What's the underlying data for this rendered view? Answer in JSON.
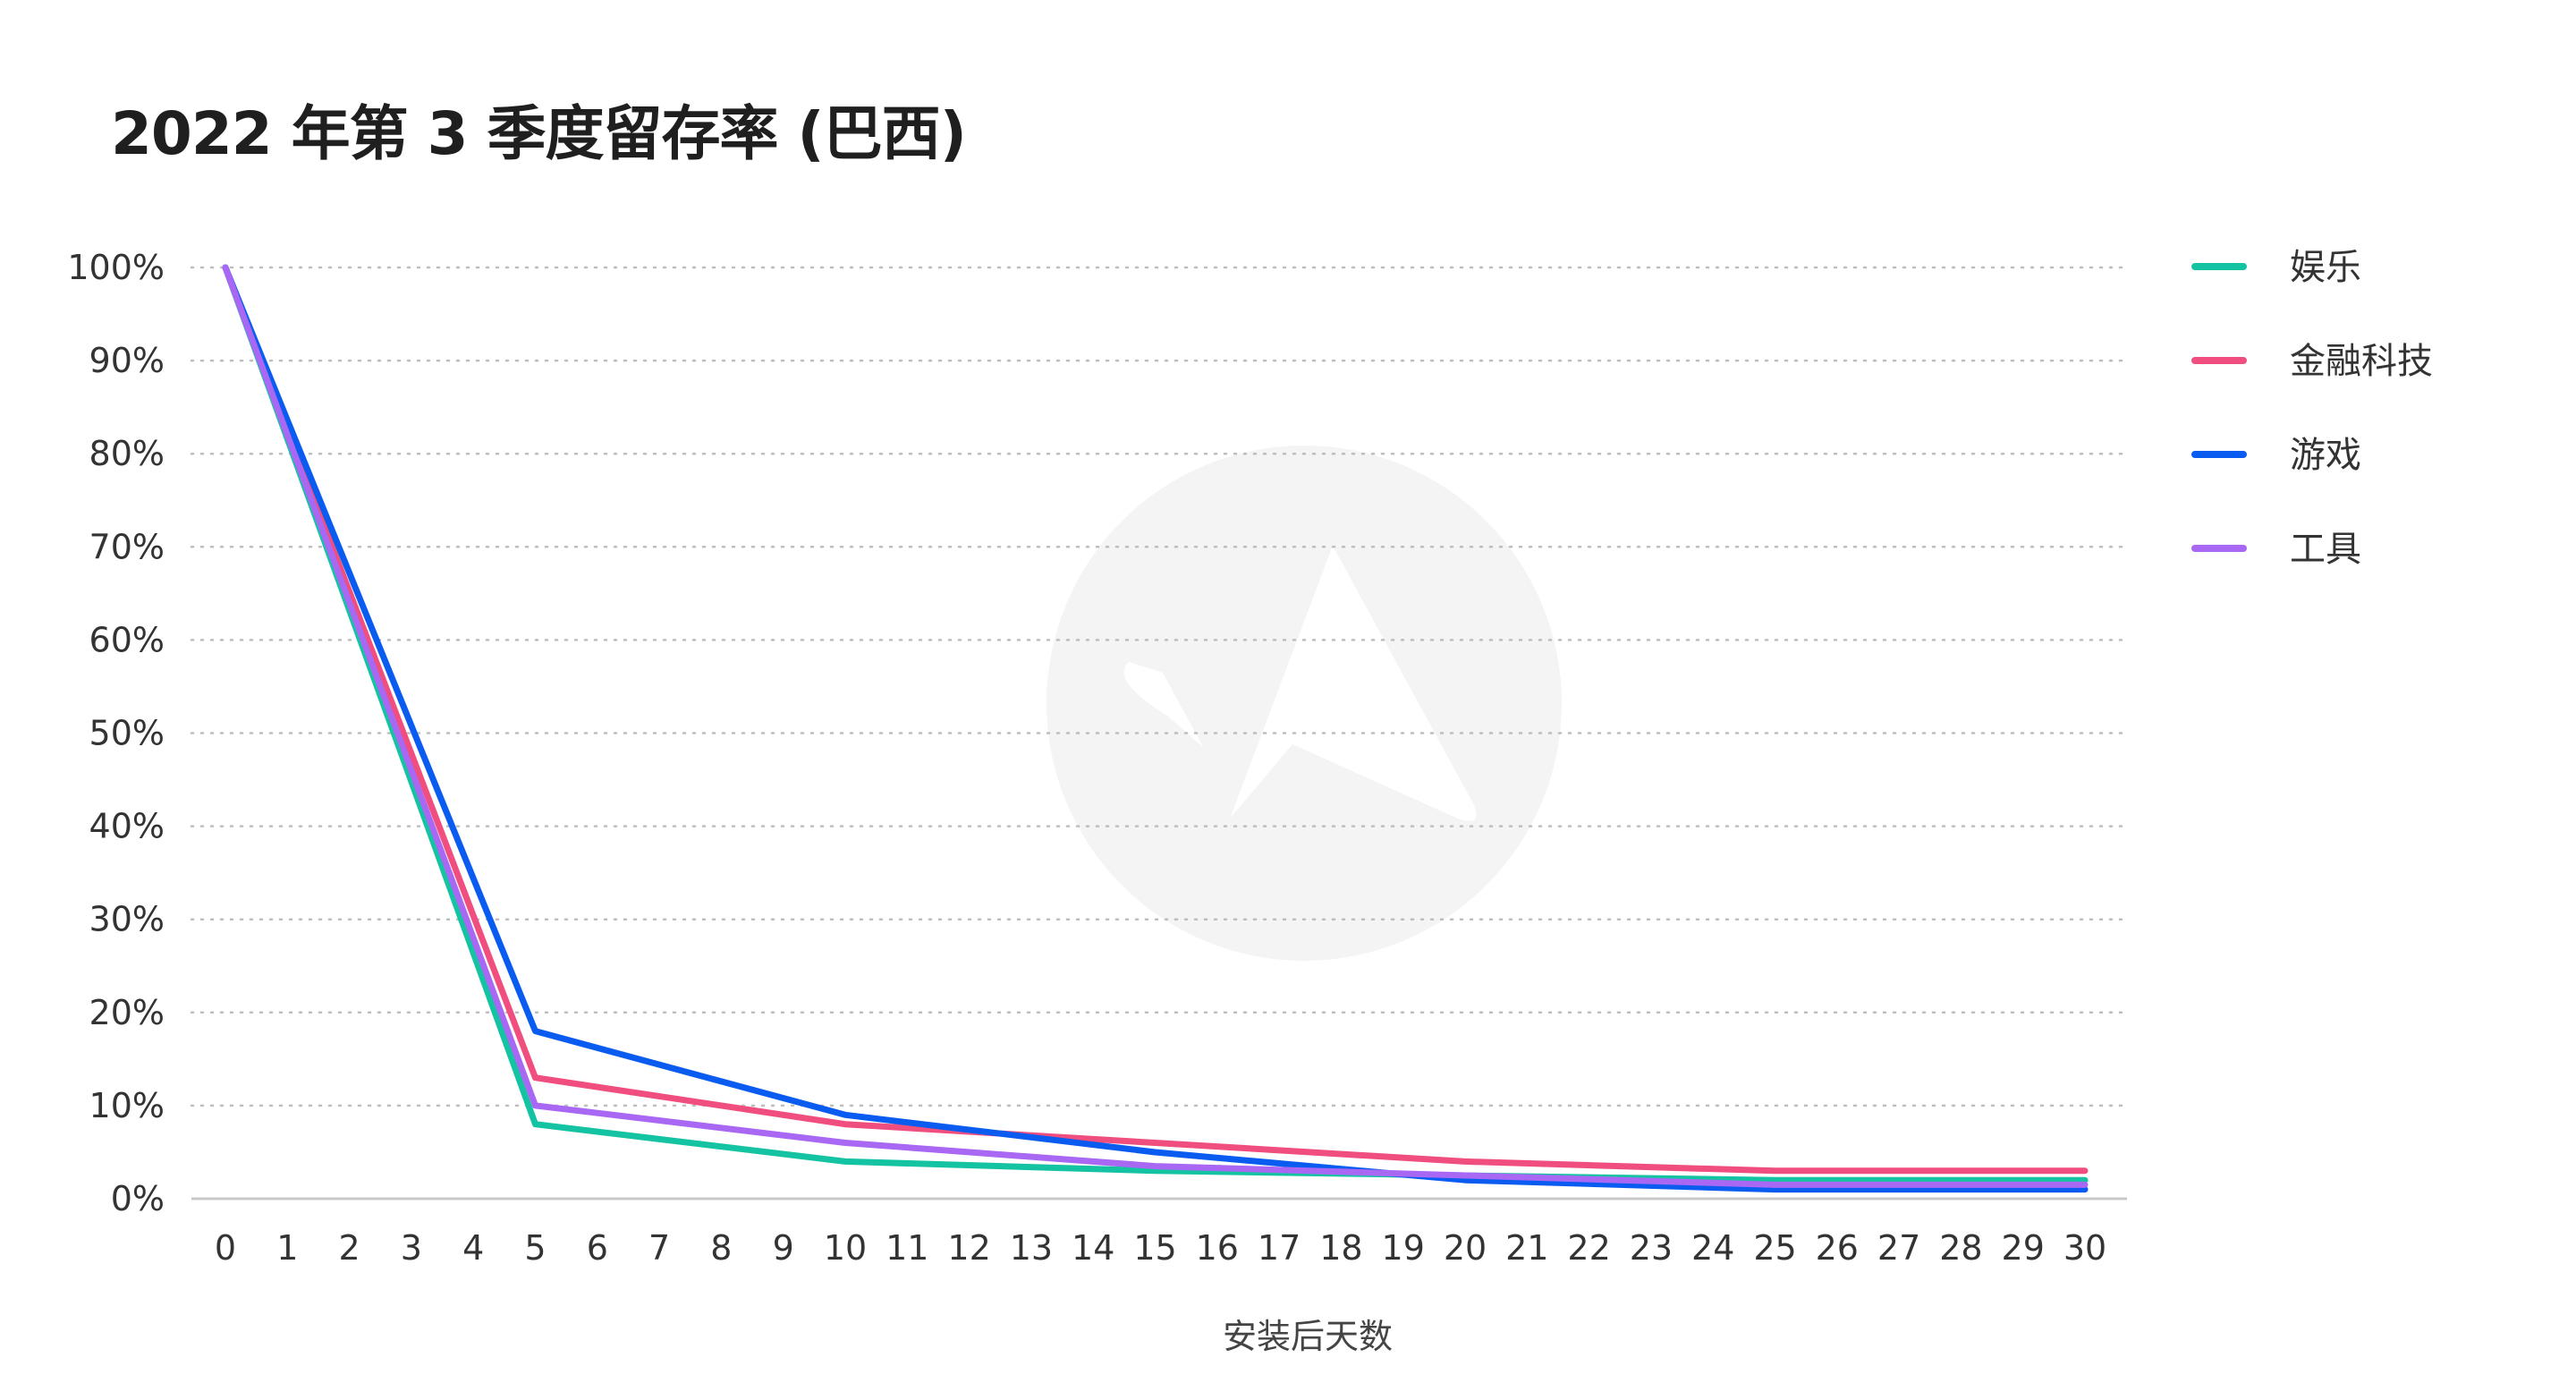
{
  "chart_data": {
    "type": "line",
    "title": "2022 年第 3 季度留存率 (巴西)",
    "xlabel": "安装后天数",
    "ylabel": "",
    "x": [
      0,
      1,
      2,
      3,
      4,
      5,
      6,
      7,
      8,
      9,
      10,
      11,
      12,
      13,
      14,
      15,
      16,
      17,
      18,
      19,
      20,
      21,
      22,
      23,
      24,
      25,
      26,
      27,
      28,
      29,
      30
    ],
    "xlim": [
      0,
      30
    ],
    "ylim": [
      0,
      100
    ],
    "yticks": [
      0,
      10,
      20,
      30,
      40,
      50,
      60,
      70,
      80,
      90,
      100
    ],
    "ytick_labels": [
      "0%",
      "10%",
      "20%",
      "30%",
      "40%",
      "50%",
      "60%",
      "70%",
      "80%",
      "90%",
      "100%"
    ],
    "grid": true,
    "legend_position": "right",
    "series": [
      {
        "name": "娱乐",
        "color": "#14c3a2",
        "points": [
          [
            0,
            100
          ],
          [
            5,
            8
          ],
          [
            10,
            4
          ],
          [
            15,
            3
          ],
          [
            20,
            2.5
          ],
          [
            25,
            2
          ],
          [
            30,
            2
          ]
        ]
      },
      {
        "name": "金融科技",
        "color": "#f04e7e",
        "points": [
          [
            0,
            100
          ],
          [
            5,
            13
          ],
          [
            10,
            8
          ],
          [
            15,
            6
          ],
          [
            20,
            4
          ],
          [
            25,
            3
          ],
          [
            30,
            3
          ]
        ]
      },
      {
        "name": "游戏",
        "color": "#0a5cf0",
        "points": [
          [
            0,
            100
          ],
          [
            5,
            18
          ],
          [
            10,
            9
          ],
          [
            15,
            5
          ],
          [
            20,
            2
          ],
          [
            25,
            1
          ],
          [
            30,
            1
          ]
        ]
      },
      {
        "name": "工具",
        "color": "#a868f4",
        "points": [
          [
            0,
            100
          ],
          [
            5,
            10
          ],
          [
            10,
            6
          ],
          [
            15,
            3.5
          ],
          [
            20,
            2.5
          ],
          [
            25,
            1.5
          ],
          [
            30,
            1.5
          ]
        ]
      }
    ]
  }
}
